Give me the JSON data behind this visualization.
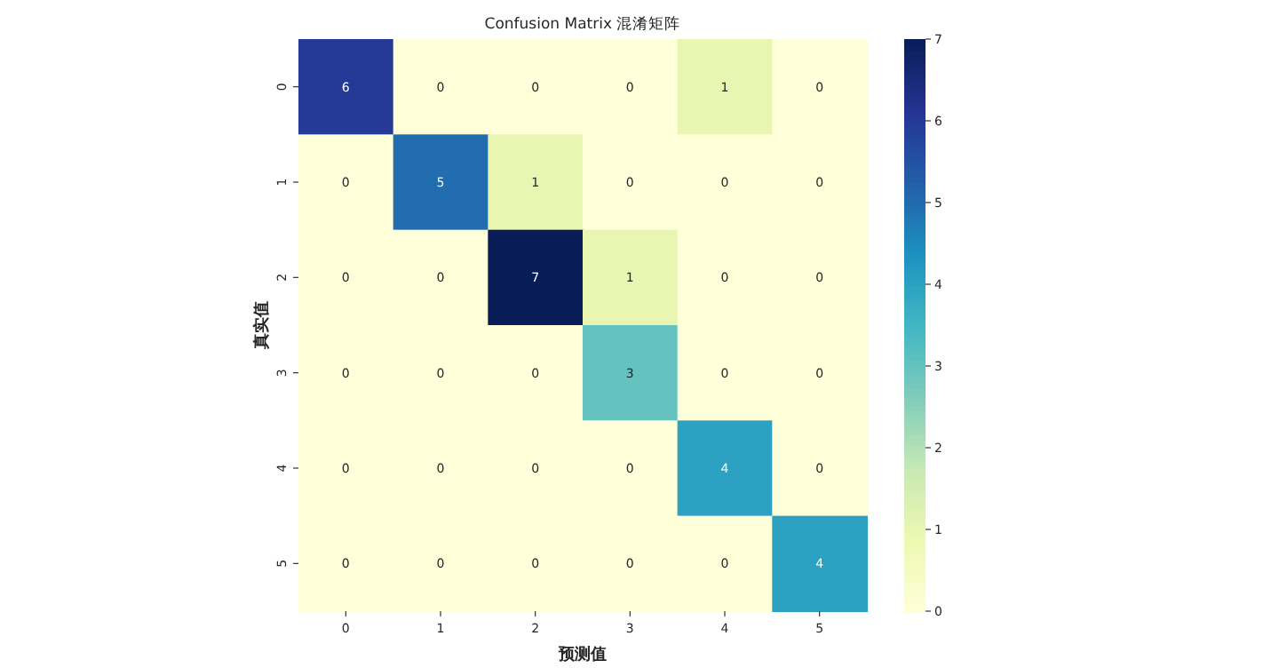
{
  "chart_data": {
    "type": "heatmap",
    "title": "Confusion Matrix 混淆矩阵",
    "xlabel": "预测值",
    "ylabel": "真实值",
    "categories": [
      "0",
      "1",
      "2",
      "3",
      "4",
      "5"
    ],
    "y_categories": [
      "0",
      "1",
      "2",
      "3",
      "4",
      "5"
    ],
    "cells": [
      [
        6,
        0,
        0,
        0,
        1,
        0
      ],
      [
        0,
        5,
        1,
        0,
        0,
        0
      ],
      [
        0,
        0,
        7,
        1,
        0,
        0
      ],
      [
        0,
        0,
        0,
        3,
        0,
        0
      ],
      [
        0,
        0,
        0,
        0,
        4,
        0
      ],
      [
        0,
        0,
        0,
        0,
        0,
        4
      ]
    ],
    "clim": [
      0,
      7
    ],
    "cticks": [
      0,
      1,
      2,
      3,
      4,
      5,
      6,
      7
    ],
    "data_labels": true
  }
}
